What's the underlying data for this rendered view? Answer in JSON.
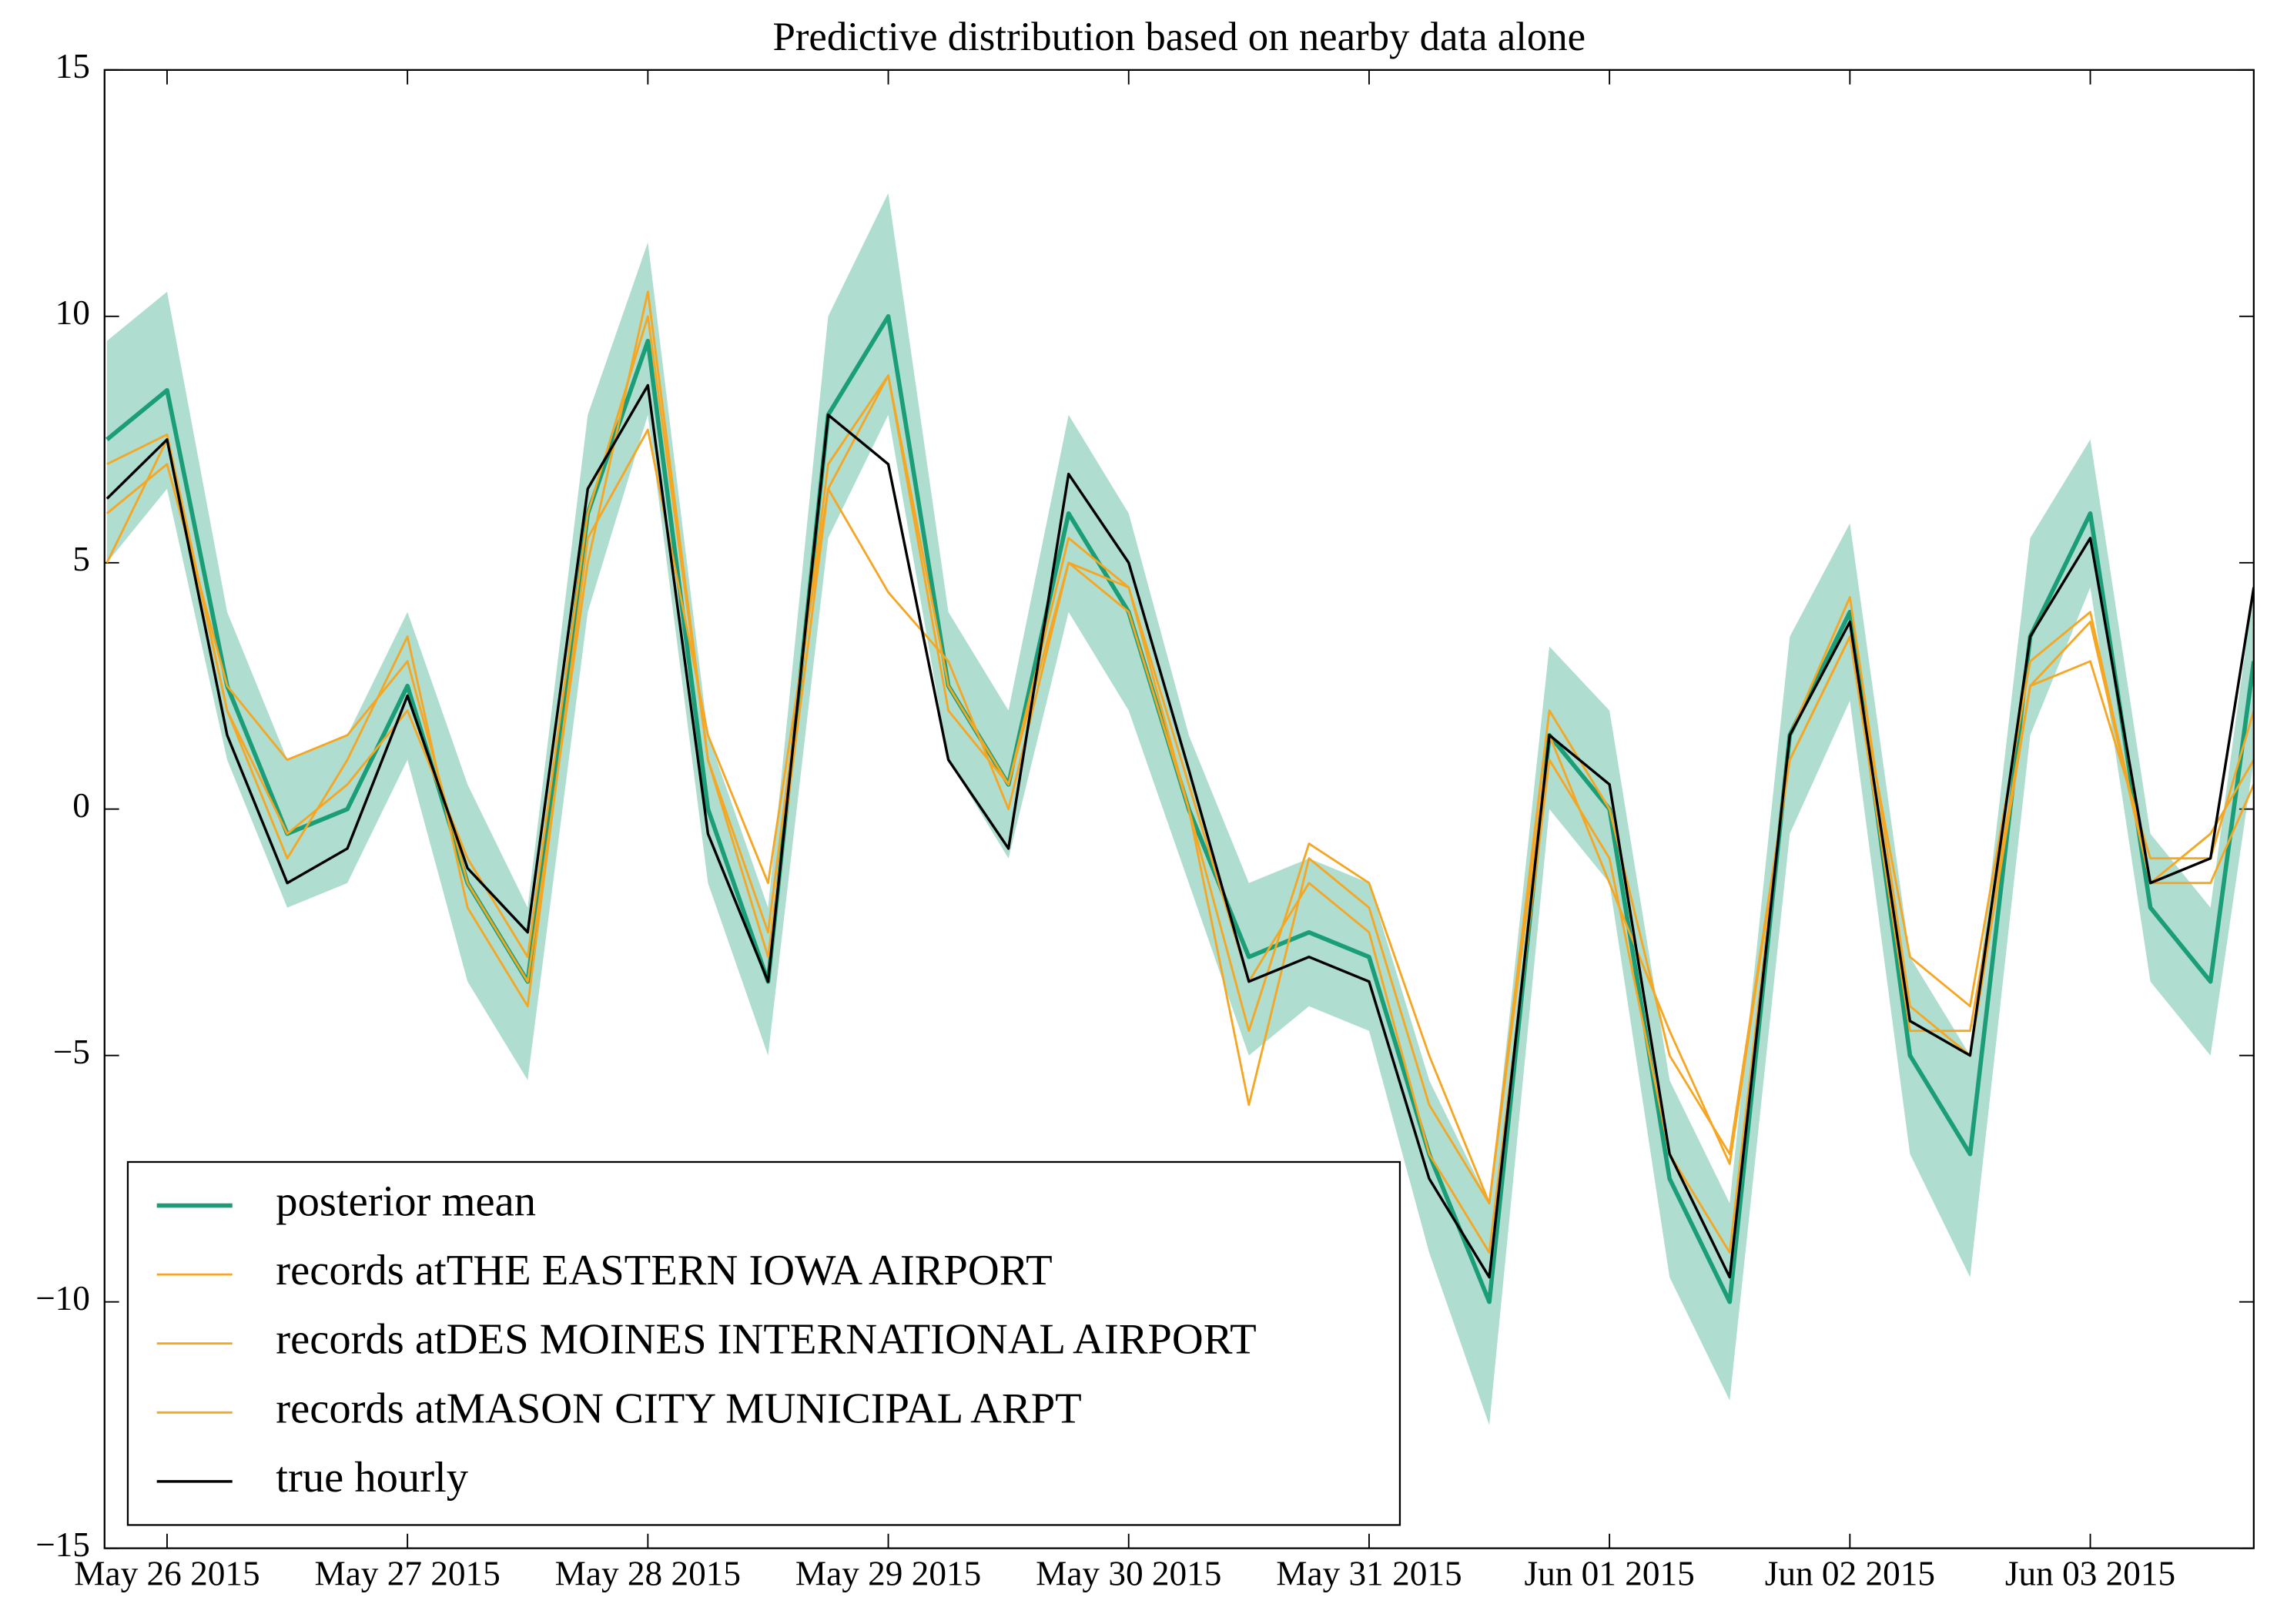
{
  "chart_data": {
    "type": "line",
    "title": "Predictive distribution based on nearby data alone",
    "x": [
      -0.25,
      0,
      0.25,
      0.5,
      0.75,
      1,
      1.25,
      1.5,
      1.75,
      2,
      2.25,
      2.5,
      2.75,
      3,
      3.25,
      3.5,
      3.75,
      4,
      4.25,
      4.5,
      4.75,
      5,
      5.25,
      5.5,
      5.75,
      6,
      6.25,
      6.5,
      6.75,
      7,
      7.25,
      7.5,
      7.75,
      8,
      8.25,
      8.5,
      8.68
    ],
    "xlim": [
      -0.26,
      8.68
    ],
    "xticks": [
      {
        "value": 0,
        "label": "May 26 2015"
      },
      {
        "value": 1,
        "label": "May 27 2015"
      },
      {
        "value": 2,
        "label": "May 28 2015"
      },
      {
        "value": 3,
        "label": "May 29 2015"
      },
      {
        "value": 4,
        "label": "May 30 2015"
      },
      {
        "value": 5,
        "label": "May 31 2015"
      },
      {
        "value": 6,
        "label": "Jun 01 2015"
      },
      {
        "value": 7,
        "label": "Jun 02 2015"
      },
      {
        "value": 8,
        "label": "Jun 03 2015"
      }
    ],
    "ylim": [
      -15,
      15
    ],
    "yticks": [
      {
        "value": -15,
        "label": "−15"
      },
      {
        "value": -10,
        "label": "−10"
      },
      {
        "value": -5,
        "label": "−5"
      },
      0,
      5,
      10,
      15
    ],
    "legend": "lower left",
    "band": {
      "color": "#1b9e77",
      "upper": [
        9.5,
        10.5,
        4,
        1,
        1.5,
        4,
        0.5,
        -2,
        8,
        11.5,
        1.5,
        -2,
        10,
        12.5,
        4,
        2,
        8,
        6,
        1.5,
        -1.5,
        -1,
        -1.5,
        -5.5,
        -8,
        3.3,
        2,
        -5.5,
        -8,
        3.5,
        5.8,
        -3,
        -5,
        5.5,
        7.5,
        -0.5,
        -2,
        4.5
      ],
      "lower": [
        5,
        6.5,
        1,
        -2,
        -1.5,
        1,
        -3.5,
        -5.5,
        4,
        8,
        -1.5,
        -5,
        5.5,
        8,
        1,
        -1,
        4,
        2,
        -1.5,
        -5,
        -4,
        -4.5,
        -9,
        -12.5,
        0,
        -1.5,
        -9.5,
        -12,
        -0.5,
        2.2,
        -7,
        -9.5,
        1.5,
        4.5,
        -3.5,
        -5,
        1
      ]
    },
    "series": [
      {
        "name": "posterior mean",
        "color": "#1b9e77",
        "width": 3,
        "values": [
          7.5,
          8.5,
          2.5,
          -0.5,
          0,
          2.5,
          -1.5,
          -3.5,
          6,
          9.5,
          0,
          -3.5,
          8,
          10,
          2.5,
          0.5,
          6,
          4,
          0,
          -3,
          -2.5,
          -3,
          -7,
          -10,
          1.5,
          0,
          -7.5,
          -10,
          1.5,
          4,
          -5,
          -7,
          3.5,
          6,
          -2,
          -3.5,
          3
        ]
      },
      {
        "name": "records atTHE EASTERN IOWA AIRPORT",
        "color": "#f5a623",
        "width": 1.5,
        "values": [
          5,
          7.5,
          2,
          -0.5,
          0.5,
          2,
          -1,
          -3,
          6,
          10,
          1,
          -2.5,
          7,
          8.8,
          2.5,
          0.5,
          5,
          4,
          0,
          -6,
          -1,
          -2,
          -6,
          -8,
          2,
          0,
          -5,
          -7,
          1,
          3.5,
          -3,
          -4,
          3,
          4,
          -1.5,
          -0.5,
          1
        ]
      },
      {
        "name": "records atDES MOINES INTERNATIONAL AIRPORT",
        "color": "#f5a623",
        "width": 1.5,
        "values": [
          6,
          7,
          2.5,
          1,
          1.5,
          3,
          -1.5,
          -3.5,
          5,
          10.5,
          1,
          -3,
          6.5,
          8.8,
          2,
          0.5,
          5.5,
          4.5,
          0.5,
          -3.5,
          -1.5,
          -2.5,
          -7,
          -9,
          1,
          -1,
          -7,
          -9,
          1.5,
          4.3,
          -4,
          -5,
          2.5,
          3.8,
          -1.5,
          -1.5,
          0.5
        ]
      },
      {
        "name": "records atMASON CITY MUNICIPAL ARPT",
        "color": "#f5a623",
        "width": 1.5,
        "values": [
          7,
          7.6,
          2,
          -1,
          1,
          3.5,
          -2,
          -4,
          5.5,
          7.7,
          1.5,
          -1.5,
          6.5,
          4.4,
          3,
          0,
          5,
          4.5,
          0,
          -4.5,
          -0.7,
          -1.5,
          -5,
          -8,
          1.5,
          -1.5,
          -4.5,
          -7.2,
          1,
          3.5,
          -4.5,
          -4.5,
          2.5,
          3,
          -1,
          -1,
          2
        ]
      },
      {
        "name": "true hourly",
        "color": "#000000",
        "width": 1.8,
        "values": [
          6.3,
          7.5,
          1.5,
          -1.5,
          -0.8,
          2.3,
          -1.2,
          -2.5,
          6.5,
          8.6,
          -0.5,
          -3.5,
          8,
          7,
          1,
          -0.8,
          6.8,
          5,
          0.8,
          -3.5,
          -3,
          -3.5,
          -7.5,
          -9.5,
          1.5,
          0.5,
          -7,
          -9.5,
          1.5,
          3.8,
          -4.3,
          -5,
          3.5,
          5.5,
          -1.5,
          -1,
          4.5
        ]
      }
    ]
  }
}
